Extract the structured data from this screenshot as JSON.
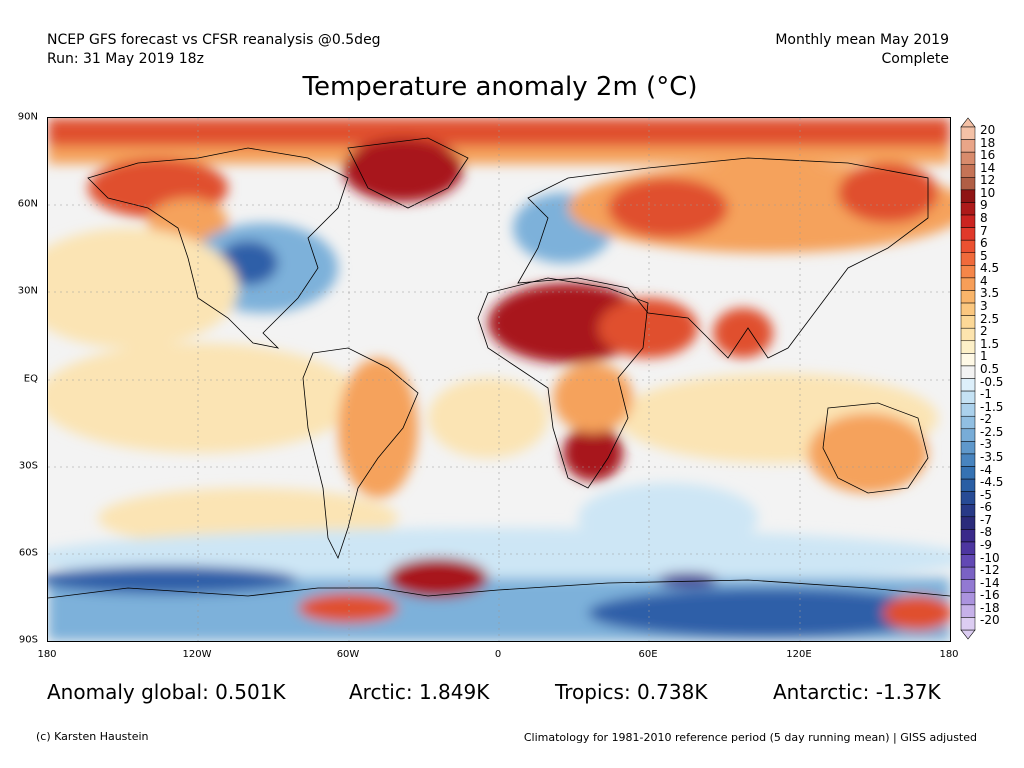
{
  "header": {
    "line1_left": "NCEP GFS forecast vs CFSR reanalysis @0.5deg",
    "line2_left": "Run: 31 May 2019 18z",
    "line1_right": "Monthly mean May 2019",
    "line2_right": "Complete"
  },
  "title": "Temperature anomaly 2m (°C)",
  "map": {
    "lat_labels": [
      "90N",
      "60N",
      "30N",
      "EQ",
      "30S",
      "60S",
      "90S"
    ],
    "lon_labels": [
      "180",
      "120W",
      "60W",
      "0",
      "60E",
      "120E",
      "180"
    ],
    "colors": {
      "ocean_neutral": "#f3f3f3",
      "warm_light": "#fbe4b4",
      "warm_mid": "#f5a25c",
      "warm_strong": "#e0502d",
      "warm_extreme": "#a8141a",
      "cold_light": "#cde6f5",
      "cold_mid": "#7db1da",
      "cold_strong": "#2e5ea8",
      "cold_extreme": "#3c2a8c"
    }
  },
  "colorbar": {
    "labels": [
      "20",
      "18",
      "16",
      "14",
      "12",
      "10",
      "9",
      "8",
      "7",
      "6",
      "5",
      "4.5",
      "4",
      "3.5",
      "3",
      "2.5",
      "2",
      "1.5",
      "1",
      "0.5",
      "-0.5",
      "-1",
      "-1.5",
      "-2",
      "-2.5",
      "-3",
      "-3.5",
      "-4",
      "-4.5",
      "-5",
      "-6",
      "-7",
      "-8",
      "-9",
      "-10",
      "-12",
      "-14",
      "-16",
      "-18",
      "-20"
    ],
    "colors": [
      "#f4c1a6",
      "#e9a588",
      "#d88b6c",
      "#c57356",
      "#b05e45",
      "#8f1414",
      "#ad1a1a",
      "#cb2421",
      "#e0392a",
      "#eb5131",
      "#f06a3b",
      "#f58649",
      "#f79e58",
      "#f9b56a",
      "#fbc77f",
      "#fcd897",
      "#fde4ae",
      "#fdf0c8",
      "#fff9e6",
      "#f3f3f3",
      "#ddeffa",
      "#c5e2f4",
      "#abd1ec",
      "#91bfe2",
      "#78acd7",
      "#5f98cb",
      "#4884bf",
      "#3572b3",
      "#2a5ea4",
      "#274b95",
      "#283a87",
      "#2b2b7b",
      "#3a2a8a",
      "#4d36a0",
      "#6249b4",
      "#7a62c4",
      "#9279d2",
      "#ab93de",
      "#c6b1e9",
      "#dccdf2"
    ]
  },
  "stats": {
    "global": "Anomaly global: 0.501K",
    "arctic": "Arctic: 1.849K",
    "tropics": "Tropics: 0.738K",
    "antarctic": "Antarctic: -1.37K"
  },
  "footer": {
    "credit": "(c) Karsten Haustein",
    "note": "Climatology for 1981-2010 reference period (5 day running mean) | GISS adjusted"
  }
}
